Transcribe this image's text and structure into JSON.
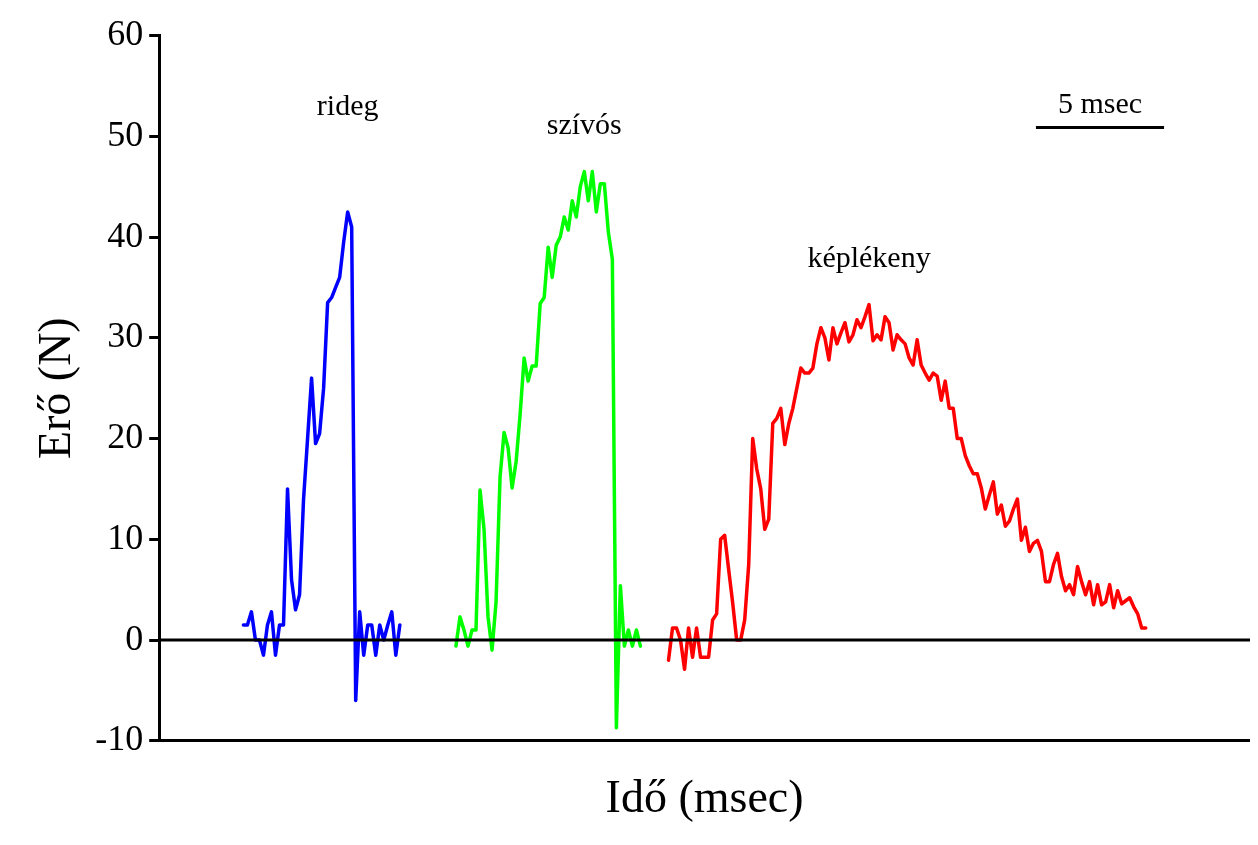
{
  "chart_data": {
    "type": "line",
    "xlabel": "Idő (msec)",
    "ylabel": "Erő (N)",
    "categories": [
      null,
      null,
      null,
      null,
      null,
      null,
      null,
      null,
      null,
      null,
      null,
      null,
      null,
      null,
      null,
      null,
      null,
      null,
      null,
      null,
      null,
      null,
      null,
      null,
      null,
      null,
      null,
      null,
      null,
      null,
      null,
      null,
      null,
      null,
      null,
      null,
      null,
      null,
      null,
      null,
      null,
      null,
      null,
      null,
      null,
      null,
      null,
      null,
      null,
      null,
      null,
      null,
      null,
      null,
      null,
      null,
      null,
      null,
      null,
      null,
      null,
      null,
      null,
      null,
      null,
      null,
      null,
      null,
      null,
      null,
      null,
      null,
      null,
      null,
      null,
      null,
      null,
      null,
      null,
      null,
      null,
      null,
      null,
      null,
      null,
      null,
      null,
      null,
      null,
      null,
      null,
      null,
      null,
      null,
      null,
      null,
      null,
      null,
      null,
      null,
      null,
      null,
      null,
      null,
      null,
      null,
      null,
      null,
      null,
      null,
      null,
      null,
      null,
      null,
      null,
      null,
      null,
      null,
      null,
      null,
      null,
      null,
      null,
      null,
      null,
      null,
      null,
      null,
      null,
      null,
      null,
      null,
      null,
      null,
      null,
      null,
      null,
      null,
      null,
      null,
      null,
      null,
      null,
      null,
      null,
      null,
      null,
      null,
      null,
      null,
      null,
      null,
      null,
      null,
      null,
      null,
      null,
      null,
      null,
      null,
      null,
      null,
      null,
      null,
      null,
      null,
      null,
      null,
      null,
      null,
      null,
      null,
      null,
      null,
      null,
      null,
      null,
      null,
      null,
      null,
      null,
      null,
      null,
      null,
      null,
      null,
      null,
      null,
      null,
      null,
      null,
      null,
      null,
      null,
      null,
      null,
      null,
      null,
      null,
      null,
      null,
      null,
      null,
      null,
      null,
      null,
      null,
      null,
      null,
      null,
      null,
      null,
      null,
      null,
      null,
      null,
      null,
      null,
      null,
      null,
      null,
      null,
      null,
      null,
      null,
      null,
      null,
      null,
      null,
      null,
      null,
      null,
      null,
      null,
      null,
      null,
      null,
      null,
      null,
      null,
      null,
      null,
      null,
      null,
      null,
      null,
      null,
      null,
      null,
      null,
      null,
      null,
      null,
      null,
      null,
      null,
      null,
      null,
      null,
      null,
      null,
      null,
      null,
      null,
      null,
      null,
      null,
      null,
      null,
      null,
      null,
      null,
      null
    ],
    "ylim": [
      -10,
      60
    ],
    "yticks": [
      -10,
      0,
      10,
      20,
      30,
      40,
      50,
      60
    ],
    "grid": false,
    "legend": false,
    "marker": "none",
    "line_style": "solid",
    "tick_labels": "y",
    "ref_lines": [
      {
        "axis": "y",
        "value": 0,
        "color": "#000000"
      }
    ],
    "annotations": [
      "rideg",
      "szívós",
      "képlékeny",
      "5 msec"
    ],
    "series": [
      {
        "color": "#0000ff",
        "values": [
          null,
          null,
          null,
          null,
          null,
          null,
          null,
          null,
          null,
          null,
          null,
          null,
          null,
          null,
          null,
          null,
          null,
          null,
          null,
          null,
          null,
          1.5,
          1.5,
          2.8,
          0,
          0,
          -1.5,
          1.5,
          2.8,
          -1.5,
          1.5,
          1.5,
          15,
          6,
          3,
          4.5,
          14,
          20,
          26,
          19.5,
          20.5,
          25,
          33.5,
          34,
          35,
          36,
          39.5,
          42.5,
          41,
          -6,
          2.8,
          -1.5,
          1.5,
          1.5,
          -1.5,
          1.5,
          0,
          1.5,
          2.8,
          -1.5,
          1.5,
          null,
          null,
          null,
          null,
          null,
          null,
          null,
          null,
          null,
          null,
          null,
          null,
          null,
          null,
          null,
          null,
          null,
          null,
          null,
          null,
          null,
          null,
          null,
          null,
          null,
          null,
          null,
          null,
          null,
          null,
          null,
          null,
          null,
          null,
          null,
          null,
          null,
          null,
          null,
          null,
          null,
          null,
          null,
          null,
          null,
          null,
          null,
          null,
          null,
          null,
          null,
          null,
          null,
          null,
          null,
          null,
          null,
          null,
          null,
          null,
          null,
          null,
          null,
          null,
          null,
          null,
          null,
          null,
          null,
          null,
          null,
          null,
          null,
          null,
          null,
          null,
          null,
          null,
          null,
          null,
          null,
          null,
          null,
          null,
          null,
          null,
          null,
          null,
          null,
          null,
          null,
          null,
          null,
          null,
          null,
          null,
          null,
          null,
          null,
          null,
          null,
          null,
          null,
          null,
          null,
          null,
          null,
          null,
          null,
          null,
          null,
          null,
          null,
          null,
          null,
          null,
          null,
          null,
          null,
          null,
          null,
          null,
          null,
          null,
          null,
          null,
          null,
          null,
          null,
          null,
          null,
          null,
          null,
          null,
          null,
          null,
          null,
          null,
          null,
          null,
          null,
          null,
          null,
          null,
          null,
          null,
          null,
          null,
          null,
          null,
          null,
          null,
          null,
          null,
          null,
          null,
          null,
          null,
          null,
          null,
          null,
          null,
          null,
          null,
          null,
          null,
          null,
          null,
          null,
          null,
          null,
          null,
          null,
          null,
          null,
          null,
          null,
          null,
          null,
          null,
          null,
          null,
          null,
          null,
          null,
          null,
          null,
          null,
          null,
          null,
          null,
          null,
          null,
          null,
          null,
          null,
          null,
          null,
          null,
          null,
          null,
          null,
          null,
          null,
          null,
          null,
          null,
          null,
          null,
          null,
          null,
          null
        ]
      },
      {
        "color": "#00ff00",
        "values": [
          null,
          null,
          null,
          null,
          null,
          null,
          null,
          null,
          null,
          null,
          null,
          null,
          null,
          null,
          null,
          null,
          null,
          null,
          null,
          null,
          null,
          null,
          null,
          null,
          null,
          null,
          null,
          null,
          null,
          null,
          null,
          null,
          null,
          null,
          null,
          null,
          null,
          null,
          null,
          null,
          null,
          null,
          null,
          null,
          null,
          null,
          null,
          null,
          null,
          null,
          null,
          null,
          null,
          null,
          null,
          null,
          null,
          null,
          null,
          null,
          null,
          null,
          null,
          null,
          null,
          null,
          null,
          null,
          null,
          null,
          null,
          null,
          null,
          null,
          -0.6,
          2.3,
          1.0,
          -0.6,
          1.0,
          1.0,
          14.9,
          11,
          2.3,
          -1.0,
          3.8,
          16.2,
          20.6,
          19.1,
          15.1,
          17.7,
          22.4,
          28,
          25.7,
          27.2,
          27.2,
          33.4,
          34,
          39,
          36,
          39.2,
          40,
          42,
          40.7,
          43.6,
          42,
          45,
          46.5,
          43.6,
          46.5,
          42.5,
          45.3,
          45.3,
          40.5,
          37.8,
          -8.7,
          5.4,
          -0.6,
          1.0,
          -0.6,
          1.0,
          -0.6,
          null,
          null,
          null,
          null,
          null,
          null,
          null,
          null,
          null,
          null,
          null,
          null,
          null,
          null,
          null,
          null,
          null,
          null,
          null,
          null,
          null,
          null,
          null,
          null,
          null,
          null,
          null,
          null,
          null,
          null,
          null,
          null,
          null,
          null,
          null,
          null,
          null,
          null,
          null,
          null,
          null,
          null,
          null,
          null,
          null,
          null,
          null,
          null,
          null,
          null,
          null,
          null,
          null,
          null,
          null,
          null,
          null,
          null,
          null,
          null,
          null,
          null,
          null,
          null,
          null,
          null,
          null,
          null,
          null,
          null,
          null,
          null,
          null,
          null,
          null,
          null,
          null,
          null,
          null,
          null,
          null,
          null,
          null,
          null,
          null,
          null,
          null,
          null,
          null,
          null,
          null,
          null,
          null,
          null,
          null,
          null,
          null,
          null,
          null,
          null,
          null,
          null,
          null,
          null,
          null,
          null,
          null,
          null,
          null,
          null,
          null,
          null,
          null,
          null,
          null,
          null,
          null,
          null,
          null,
          null,
          null,
          null,
          null,
          null,
          null,
          null,
          null,
          null,
          null,
          null,
          null,
          null,
          null,
          null,
          null,
          null,
          null,
          null,
          null,
          null,
          null,
          null,
          null,
          null,
          null,
          null,
          null,
          null,
          null,
          null,
          null,
          null
        ]
      },
      {
        "color": "#ff0000",
        "values": [
          null,
          null,
          null,
          null,
          null,
          null,
          null,
          null,
          null,
          null,
          null,
          null,
          null,
          null,
          null,
          null,
          null,
          null,
          null,
          null,
          null,
          null,
          null,
          null,
          null,
          null,
          null,
          null,
          null,
          null,
          null,
          null,
          null,
          null,
          null,
          null,
          null,
          null,
          null,
          null,
          null,
          null,
          null,
          null,
          null,
          null,
          null,
          null,
          null,
          null,
          null,
          null,
          null,
          null,
          null,
          null,
          null,
          null,
          null,
          null,
          null,
          null,
          null,
          null,
          null,
          null,
          null,
          null,
          null,
          null,
          null,
          null,
          null,
          null,
          null,
          null,
          null,
          null,
          null,
          null,
          null,
          null,
          null,
          null,
          null,
          null,
          null,
          null,
          null,
          null,
          null,
          null,
          null,
          null,
          null,
          null,
          null,
          null,
          null,
          null,
          null,
          null,
          null,
          null,
          null,
          null,
          null,
          null,
          null,
          null,
          null,
          null,
          null,
          null,
          null,
          null,
          null,
          null,
          null,
          null,
          null,
          null,
          null,
          null,
          null,
          null,
          null,
          -2.0,
          1.2,
          1.2,
          0,
          -2.9,
          1.2,
          -1.7,
          1.2,
          -1.7,
          -1.7,
          -1.7,
          2,
          2.6,
          10,
          10.4,
          7,
          3.7,
          0,
          0,
          2,
          7.5,
          20,
          17,
          15,
          11,
          12,
          21.5,
          22,
          23,
          19.4,
          21.5,
          23,
          25,
          27,
          26.5,
          26.5,
          27,
          29.4,
          31,
          30,
          27.8,
          31,
          29.4,
          30.5,
          31.5,
          29.6,
          30.3,
          31.8,
          31,
          32.1,
          33.3,
          29.7,
          30.3,
          29.8,
          32.1,
          31.5,
          28.8,
          30.3,
          29.8,
          29.4,
          28,
          27.3,
          29.8,
          27.3,
          26.5,
          25.8,
          26.5,
          26.2,
          23.8,
          25.7,
          23,
          23,
          20,
          20,
          18.3,
          17.3,
          16.5,
          16.5,
          15.1,
          13,
          14.4,
          15.7,
          12.5,
          13.4,
          11.3,
          11.8,
          13,
          14,
          9.9,
          11.2,
          8.8,
          9.6,
          9.9,
          8.8,
          5.8,
          5.8,
          7.5,
          8.6,
          6.3,
          4.9,
          5.5,
          4.5,
          7.3,
          5.8,
          4.5,
          5.8,
          3.5,
          5.5,
          3.5,
          3.8,
          5.5,
          3.2,
          4.9,
          3.6,
          3.9,
          4.2,
          3.3,
          2.6,
          1.2,
          1.2,
          null,
          null,
          null,
          null,
          null,
          null,
          null,
          null,
          null,
          null,
          null,
          null,
          null,
          null,
          null,
          null,
          null,
          null,
          null,
          null,
          null,
          null,
          null,
          null,
          null,
          null
        ]
      }
    ]
  }
}
